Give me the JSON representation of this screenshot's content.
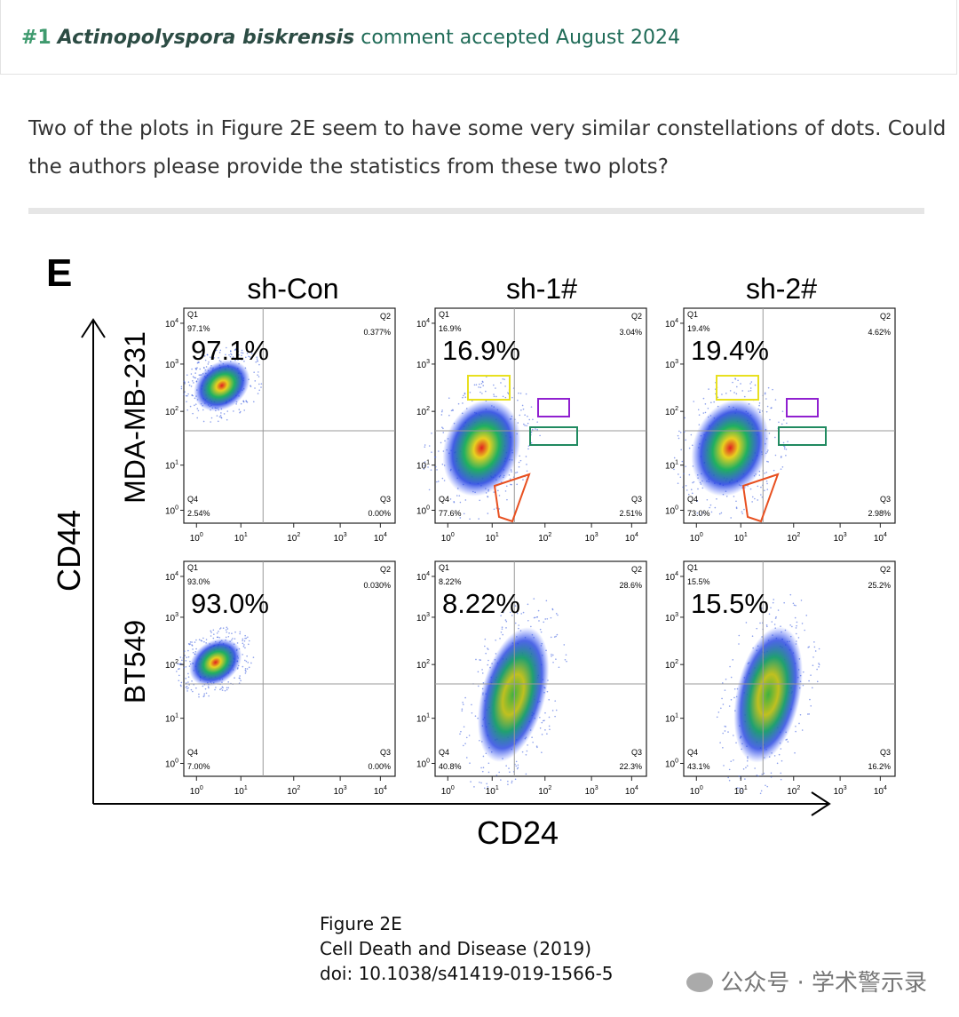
{
  "header": {
    "number": "#1",
    "author": "Actinopolyspora biskrensis",
    "status": "comment accepted August 2024"
  },
  "comment": {
    "lines": [
      "Two of the plots in Figure 2E seem to have some very similar constellations of dots. Could",
      "the authors please provide the statistics from these two plots?"
    ]
  },
  "figure": {
    "panel_letter": "E",
    "columns": [
      "sh-Con",
      "sh-1#",
      "sh-2#"
    ],
    "rows": [
      "MDA-MB-231",
      "BT549"
    ],
    "y_axis": "CD44",
    "x_axis": "CD24",
    "tick_base": "10",
    "tick_exponents": [
      "0",
      "1",
      "2",
      "3",
      "4"
    ],
    "quadrant_names": [
      "Q1",
      "Q2",
      "Q3",
      "Q4"
    ],
    "panels": [
      [
        {
          "q1": "97.1%",
          "q2": "0.377%",
          "q3": "0.00%",
          "q4": "2.54%"
        },
        {
          "q1": "16.9%",
          "q2": "3.04%",
          "q3": "2.51%",
          "q4": "77.6%"
        },
        {
          "q1": "19.4%",
          "q2": "4.62%",
          "q3": "2.98%",
          "q4": "73.0%"
        }
      ],
      [
        {
          "q1": "93.0%",
          "q2": "0.030%",
          "q3": "0.00%",
          "q4": "7.00%"
        },
        {
          "q1": "8.22%",
          "q2": "28.6%",
          "q3": "22.3%",
          "q4": "40.8%"
        },
        {
          "q1": "15.5%",
          "q2": "25.2%",
          "q3": "16.2%",
          "q4": "43.1%"
        }
      ]
    ]
  },
  "caption": [
    "Figure 2E",
    "Cell Death and Disease (2019)",
    "doi: 10.1038/s41419-019-1566-5"
  ],
  "watermark": "公众号 · 学术警示录"
}
